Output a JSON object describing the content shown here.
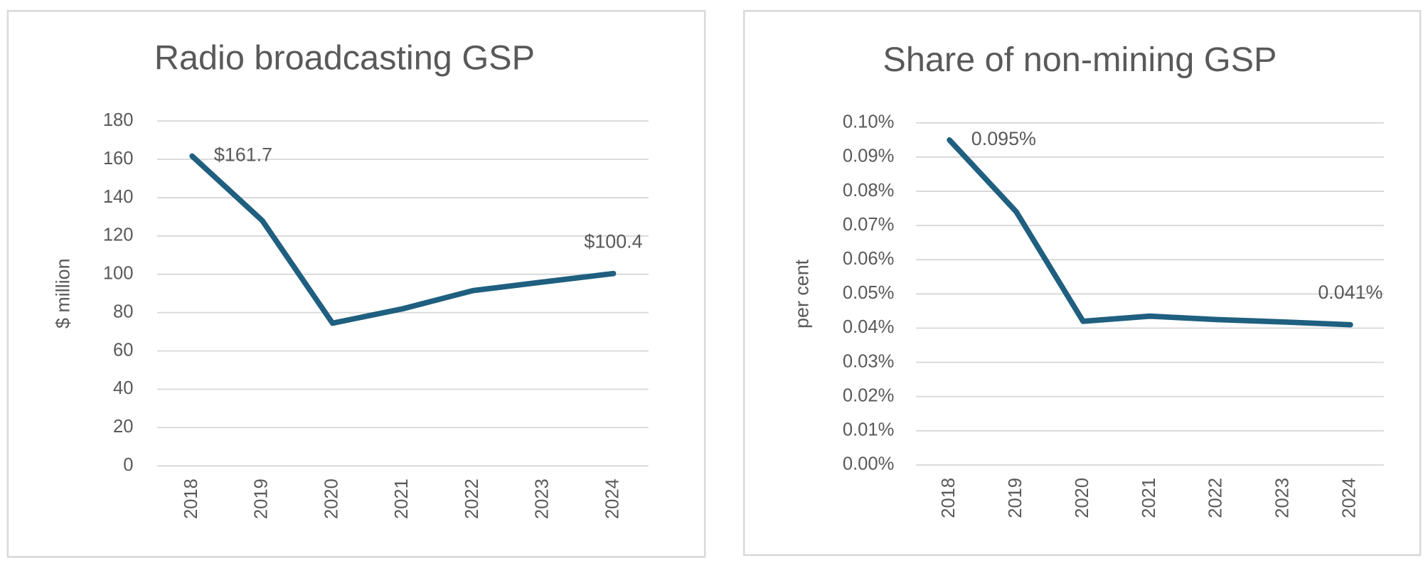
{
  "chart_data": [
    {
      "type": "line",
      "title": "Radio broadcasting GSP",
      "y_label": "$ million",
      "categories": [
        "2018",
        "2019",
        "2020",
        "2021",
        "2022",
        "2023",
        "2024"
      ],
      "values": [
        161.7,
        128,
        74.5,
        82,
        91.5,
        96,
        100.4
      ],
      "value_labels": [
        "$161.7",
        null,
        null,
        null,
        null,
        null,
        "$100.4"
      ],
      "color": "#1f5f7f",
      "ylim": [
        0,
        180
      ],
      "yticks": [
        0,
        20,
        40,
        60,
        80,
        100,
        120,
        140,
        160,
        180
      ],
      "grid": true
    },
    {
      "type": "line",
      "title": "Share of non-mining GSP",
      "y_label": "per cent",
      "categories": [
        "2018",
        "2019",
        "2020",
        "2021",
        "2022",
        "2023",
        "2024"
      ],
      "values": [
        0.095,
        0.074,
        0.042,
        0.0435,
        0.0425,
        0.0418,
        0.041
      ],
      "value_labels": [
        "0.095%",
        null,
        null,
        null,
        null,
        null,
        "0.041%"
      ],
      "color": "#1f5f7f",
      "ylim": [
        0,
        0.1
      ],
      "yticks": [
        {
          "value": 0,
          "label": "0.00%"
        },
        {
          "value": 0.01,
          "label": "0.01%"
        },
        {
          "value": 0.02,
          "label": "0.02%"
        },
        {
          "value": 0.03,
          "label": "0.03%"
        },
        {
          "value": 0.04,
          "label": "0.04%"
        },
        {
          "value": 0.05,
          "label": "0.05%"
        },
        {
          "value": 0.06,
          "label": "0.06%"
        },
        {
          "value": 0.07,
          "label": "0.07%"
        },
        {
          "value": 0.08,
          "label": "0.08%"
        },
        {
          "value": 0.09,
          "label": "0.09%"
        },
        {
          "value": 0.1,
          "label": "0.10%"
        }
      ],
      "grid": true
    }
  ]
}
